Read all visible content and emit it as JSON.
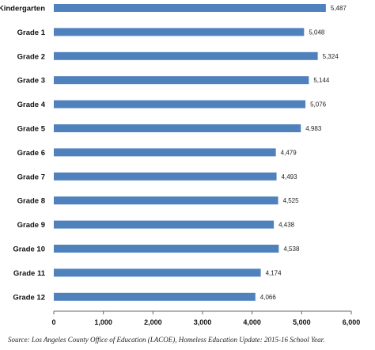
{
  "chart_data": {
    "type": "bar",
    "orientation": "horizontal",
    "categories": [
      "Kindergarten",
      "Grade 1",
      "Grade 2",
      "Grade 3",
      "Grade 4",
      "Grade 5",
      "Grade 6",
      "Grade 7",
      "Grade 8",
      "Grade 9",
      "Grade 10",
      "Grade 11",
      "Grade 12"
    ],
    "values": [
      5487,
      5048,
      5324,
      5144,
      5076,
      4983,
      4479,
      4493,
      4525,
      4438,
      4538,
      4174,
      4066
    ],
    "value_labels": [
      "5,487",
      "5,048",
      "5,324",
      "5,144",
      "5,076",
      "4,983",
      "4,479",
      "4,493",
      "4,525",
      "4,438",
      "4,538",
      "4,174",
      "4,066"
    ],
    "xlim": [
      0,
      6000
    ],
    "xticks": [
      0,
      1000,
      2000,
      3000,
      4000,
      5000,
      6000
    ],
    "xtick_labels": [
      "0",
      "1,000",
      "2,000",
      "3,000",
      "4,000",
      "5,000",
      "6,000"
    ],
    "grid": false,
    "bar_color": "#4f81bd",
    "source": "Source: Los Angeles County Office of Education (LACOE), Homeless Education Update: 2015-16 School Year."
  }
}
